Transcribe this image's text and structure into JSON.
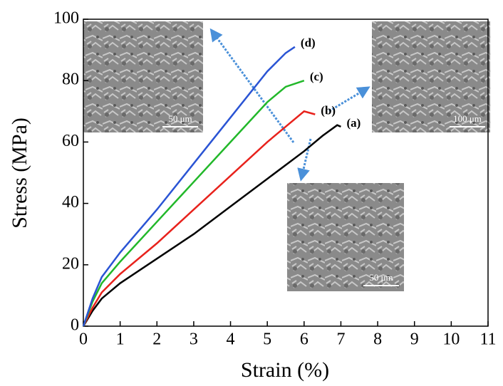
{
  "chart_data": {
    "type": "line",
    "x_label": "Strain (%)",
    "y_label": "Stress (MPa)",
    "xlim": [
      0,
      11
    ],
    "xticks": [
      0,
      1,
      2,
      3,
      4,
      5,
      6,
      7,
      8,
      9,
      10,
      11
    ],
    "ylim": [
      0,
      100
    ],
    "yticks": [
      0,
      20,
      40,
      60,
      80,
      100
    ],
    "series": [
      {
        "name": "(a)",
        "color": "#000000",
        "x": [
          0,
          0.25,
          0.5,
          1,
          2,
          3,
          4,
          5,
          6,
          6.5,
          6.9,
          7
        ],
        "values": [
          0,
          5,
          9,
          14,
          22,
          30,
          39,
          48,
          57,
          62,
          65.5,
          65
        ]
      },
      {
        "name": "(b)",
        "color": "#e8221c",
        "x": [
          0,
          0.25,
          0.5,
          1,
          2,
          3,
          4,
          5,
          5.5,
          6,
          6.3
        ],
        "values": [
          0,
          6,
          11,
          17,
          27,
          38,
          49,
          60,
          65,
          70,
          69
        ]
      },
      {
        "name": "(c)",
        "color": "#22b82a",
        "x": [
          0,
          0.25,
          0.5,
          1,
          2,
          3,
          4,
          5,
          5.5,
          6
        ],
        "values": [
          0,
          8,
          14,
          21,
          34,
          47,
          60,
          73,
          78,
          80
        ]
      },
      {
        "name": "(d)",
        "color": "#2a54d4",
        "x": [
          0,
          0.25,
          0.5,
          1,
          2,
          3,
          4,
          5,
          5.5,
          5.75
        ],
        "values": [
          0,
          9,
          16,
          24,
          38,
          53,
          68,
          83,
          89,
          91
        ]
      }
    ],
    "insets": [
      {
        "scale_label": "50 μm"
      },
      {
        "scale_label": "100 μm"
      },
      {
        "scale_label": "50 μm"
      }
    ]
  }
}
